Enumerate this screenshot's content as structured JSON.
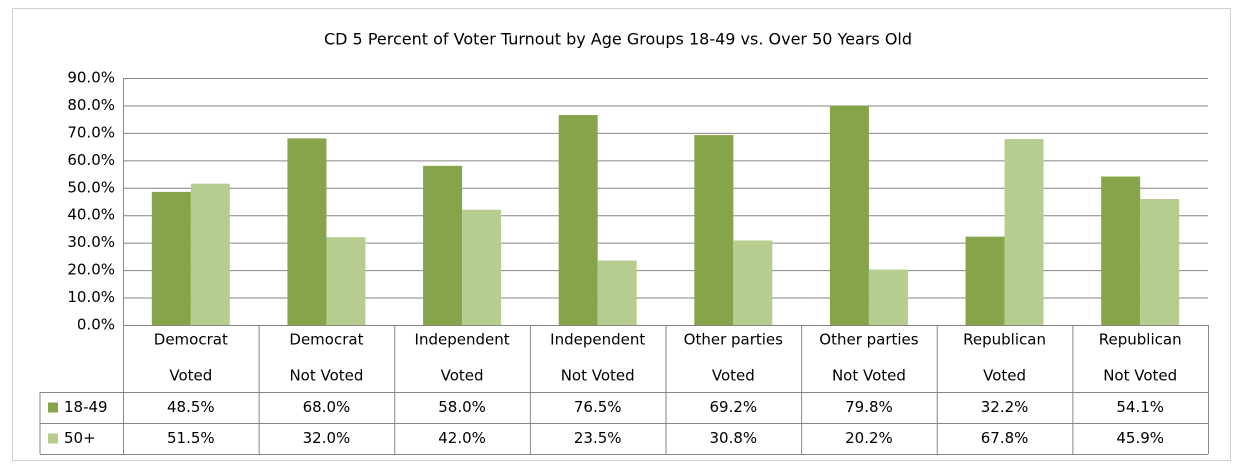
{
  "chart_data": {
    "type": "bar",
    "title": "CD 5 Percent of Voter Turnout by Age Groups 18-49 vs. Over 50 Years Old",
    "categories": [
      [
        "Democrat",
        "Voted"
      ],
      [
        "Democrat",
        "Not Voted"
      ],
      [
        "Independent",
        "Voted"
      ],
      [
        "Independent",
        "Not Voted"
      ],
      [
        "Other parties",
        "Voted"
      ],
      [
        "Other parties",
        "Not Voted"
      ],
      [
        "Republican",
        "Voted"
      ],
      [
        "Republican",
        "Not Voted"
      ]
    ],
    "series": [
      {
        "name": "18-49",
        "color": "#86a44a",
        "values": [
          48.5,
          68.0,
          58.0,
          76.5,
          69.2,
          79.8,
          32.2,
          54.1
        ],
        "value_labels": [
          "48.5%",
          "68.0%",
          "58.0%",
          "76.5%",
          "69.2%",
          "79.8%",
          "32.2%",
          "54.1%"
        ]
      },
      {
        "name": "50+",
        "color": "#b7cd90",
        "values": [
          51.5,
          32.0,
          42.0,
          23.5,
          30.8,
          20.2,
          67.8,
          45.9
        ],
        "value_labels": [
          "51.5%",
          "32.0%",
          "42.0%",
          "23.5%",
          "30.8%",
          "20.2%",
          "67.8%",
          "45.9%"
        ]
      }
    ],
    "ylim": [
      0,
      90
    ],
    "yticks": [
      {
        "value": 0,
        "label": "0.0%"
      },
      {
        "value": 10,
        "label": "10.0%"
      },
      {
        "value": 20,
        "label": "20.0%"
      },
      {
        "value": 30,
        "label": "30.0%"
      },
      {
        "value": 40,
        "label": "40.0%"
      },
      {
        "value": 50,
        "label": "50.0%"
      },
      {
        "value": 60,
        "label": "60.0%"
      },
      {
        "value": 70,
        "label": "70.0%"
      },
      {
        "value": 80,
        "label": "80.0%"
      },
      {
        "value": 90,
        "label": "90.0%"
      }
    ],
    "grid": true
  }
}
